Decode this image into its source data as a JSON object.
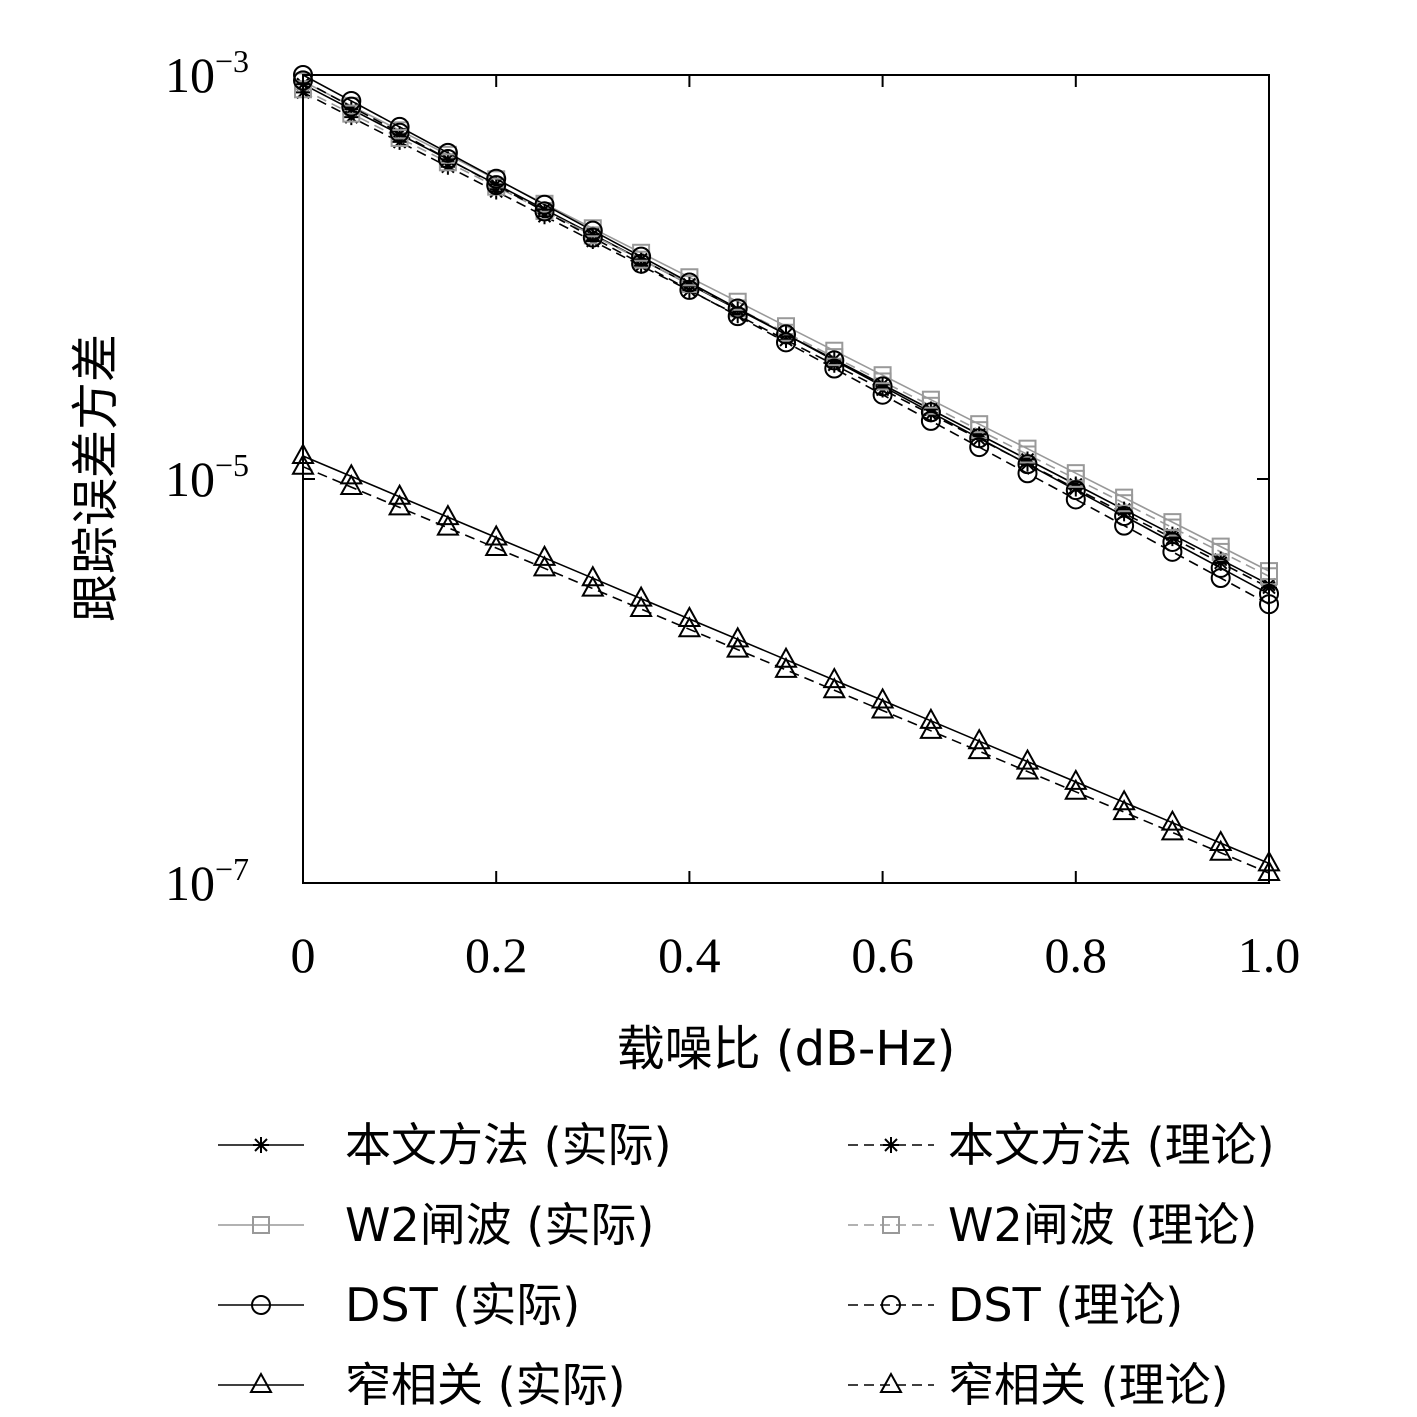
{
  "chart_data": {
    "type": "line",
    "xlabel": "载噪比 (dB-Hz)",
    "ylabel": "跟踪误差方差",
    "xlim": [
      0,
      1.0
    ],
    "ylim": [
      1e-07,
      0.001
    ],
    "yscale": "log",
    "grid": false,
    "legend_position": "bottom",
    "x_ticks": [
      0,
      0.2,
      0.4,
      0.6,
      0.8,
      1.0
    ],
    "x_tick_labels": [
      "0",
      "0.2",
      "0.4",
      "0.6",
      "0.8",
      "1.0"
    ],
    "y_ticks": [
      1e-07,
      1e-05,
      0.001
    ],
    "y_tick_labels": [
      {
        "base": "10",
        "exp": "−7"
      },
      {
        "base": "10",
        "exp": "−5"
      },
      {
        "base": "10",
        "exp": "−3"
      }
    ],
    "x": [
      0,
      0.05,
      0.1,
      0.15,
      0.2,
      0.25,
      0.3,
      0.35,
      0.4,
      0.45,
      0.5,
      0.55,
      0.6,
      0.65,
      0.7,
      0.75,
      0.8,
      0.85,
      0.9,
      0.95,
      1.0
    ],
    "series": [
      {
        "name": "本文方法 (实际)",
        "marker": "star",
        "line": "solid",
        "color": "#000000",
        "start": 0.0009,
        "end": 3e-06
      },
      {
        "name": "本文方法 (理论)",
        "marker": "star",
        "line": "dashed",
        "color": "#000000",
        "start": 0.00082,
        "end": 2.9e-06
      },
      {
        "name": "W2闸波 (实际)",
        "marker": "square",
        "line": "solid",
        "color": "#999999",
        "start": 0.00093,
        "end": 3.5e-06
      },
      {
        "name": "W2闸波 (理论)",
        "marker": "square",
        "line": "dashed",
        "color": "#999999",
        "start": 0.00085,
        "end": 3.3e-06
      },
      {
        "name": "DST (实际)",
        "marker": "circle",
        "line": "solid",
        "color": "#000000",
        "start": 0.001,
        "end": 2.7e-06
      },
      {
        "name": "DST (理论)",
        "marker": "circle",
        "line": "dashed",
        "color": "#000000",
        "start": 0.00094,
        "end": 2.4e-06
      },
      {
        "name": "窄相关 (实际)",
        "marker": "triangle",
        "line": "solid",
        "color": "#000000",
        "start": 1.3e-05,
        "end": 1.25e-07
      },
      {
        "name": "窄相关 (理论)",
        "marker": "triangle",
        "line": "dashed",
        "color": "#000000",
        "start": 1.15e-05,
        "end": 1.12e-07
      }
    ]
  }
}
